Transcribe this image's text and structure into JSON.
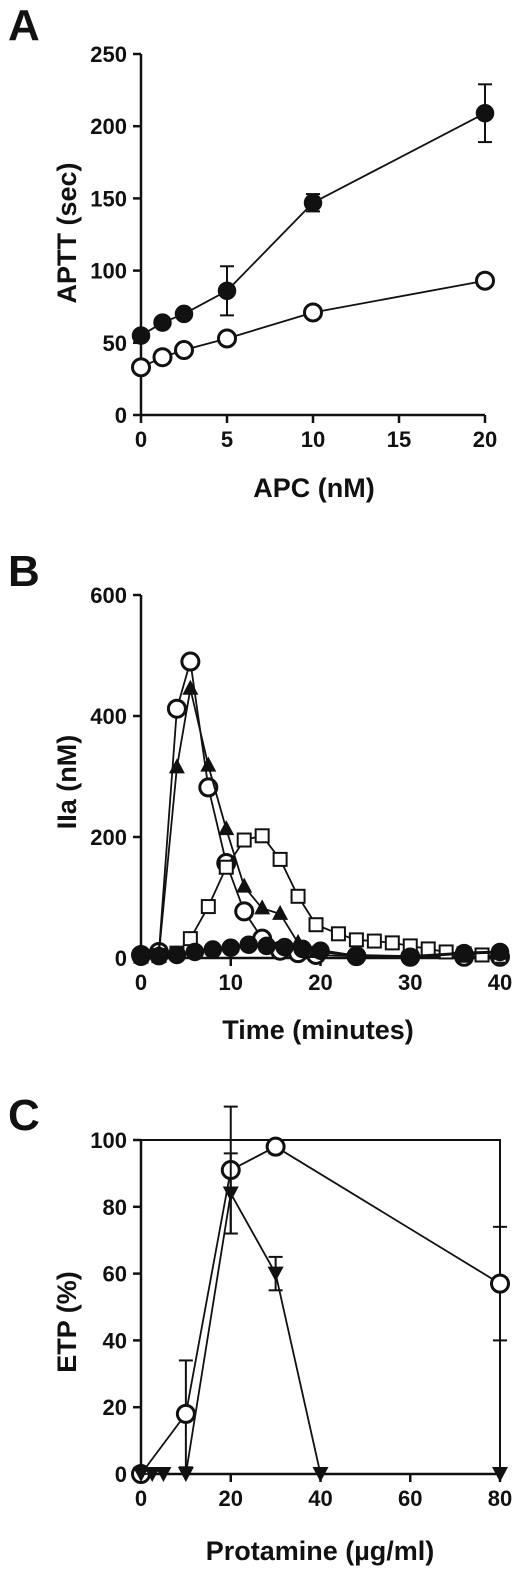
{
  "chart_data": [
    {
      "panel": "A",
      "type": "line",
      "xlabel": "APC (nM)",
      "ylabel": "APTT (sec)",
      "xlim": [
        0,
        20
      ],
      "ylim": [
        0,
        250
      ],
      "xticks": [
        0,
        5,
        10,
        15,
        20
      ],
      "yticks": [
        0,
        50,
        100,
        150,
        200,
        250
      ],
      "grid": false,
      "series": [
        {
          "marker": "filled-circle",
          "x": [
            0,
            1.25,
            2.5,
            5,
            10,
            20
          ],
          "y": [
            55,
            64,
            70,
            86,
            147,
            209
          ],
          "err": [
            0,
            0,
            0,
            17,
            6,
            20
          ]
        },
        {
          "marker": "open-circle",
          "x": [
            0,
            1.25,
            2.5,
            5,
            10,
            20
          ],
          "y": [
            33,
            40,
            45,
            53,
            71,
            93
          ],
          "err": [
            0,
            0,
            0,
            0,
            0,
            0
          ]
        }
      ]
    },
    {
      "panel": "B",
      "type": "line",
      "xlabel": "Time (minutes)",
      "ylabel": "IIa (nM)",
      "xlim": [
        0,
        40
      ],
      "ylim": [
        0,
        600
      ],
      "xticks": [
        0,
        10,
        20,
        30,
        40
      ],
      "yticks": [
        0,
        200,
        400,
        600
      ],
      "grid": false,
      "series": [
        {
          "marker": "open-circle",
          "x": [
            0,
            2,
            4,
            5.5,
            7.5,
            9.5,
            11.5,
            13.5,
            15.5,
            17.5,
            19.5,
            24,
            30,
            36,
            40
          ],
          "y": [
            5,
            10,
            412,
            490,
            282,
            157,
            77,
            32,
            12,
            8,
            5,
            3,
            2,
            2,
            2
          ]
        },
        {
          "marker": "filled-triangle",
          "x": [
            0,
            2,
            4,
            5.5,
            7.5,
            9.5,
            11.5,
            13.5,
            15.5,
            17.5,
            19.5,
            24,
            30,
            36,
            40
          ],
          "y": [
            5,
            8,
            315,
            445,
            318,
            213,
            118,
            82,
            73,
            25,
            10,
            5,
            3,
            2,
            2
          ]
        },
        {
          "marker": "open-square",
          "x": [
            0,
            2,
            4,
            5.5,
            7.5,
            9.5,
            11.5,
            13.5,
            15.5,
            17.5,
            19.5,
            22,
            24,
            26,
            28,
            30,
            32,
            34,
            36,
            38,
            40
          ],
          "y": [
            3,
            4,
            8,
            32,
            85,
            150,
            195,
            202,
            163,
            102,
            55,
            40,
            30,
            28,
            25,
            20,
            15,
            10,
            7,
            5,
            3
          ]
        },
        {
          "marker": "filled-circle",
          "x": [
            0,
            2,
            4,
            6,
            8,
            10,
            12,
            14,
            16,
            18,
            20,
            24,
            30,
            36,
            40
          ],
          "y": [
            2,
            3,
            5,
            10,
            14,
            17,
            22,
            20,
            18,
            15,
            12,
            3,
            2,
            8,
            10
          ]
        }
      ]
    },
    {
      "panel": "C",
      "type": "line",
      "xlabel": "Protamine (µg/ml)",
      "ylabel": "ETP (%)",
      "xlim": [
        0,
        80
      ],
      "ylim": [
        0,
        100
      ],
      "xticks": [
        0,
        20,
        40,
        60,
        80
      ],
      "yticks": [
        0,
        20,
        40,
        60,
        80,
        100
      ],
      "grid": false,
      "series": [
        {
          "marker": "open-circle",
          "x": [
            0,
            10,
            20,
            30,
            80
          ],
          "y": [
            0,
            18,
            91,
            98,
            57
          ],
          "err": [
            0,
            16,
            19,
            2,
            17
          ]
        },
        {
          "marker": "filled-triangle-down",
          "x": [
            0,
            2.5,
            5,
            10,
            20,
            30,
            40,
            80
          ],
          "y": [
            0,
            0,
            0,
            0,
            84,
            60,
            0,
            0
          ],
          "err": [
            0,
            0,
            0,
            0,
            12,
            5,
            0,
            0
          ]
        }
      ]
    }
  ]
}
